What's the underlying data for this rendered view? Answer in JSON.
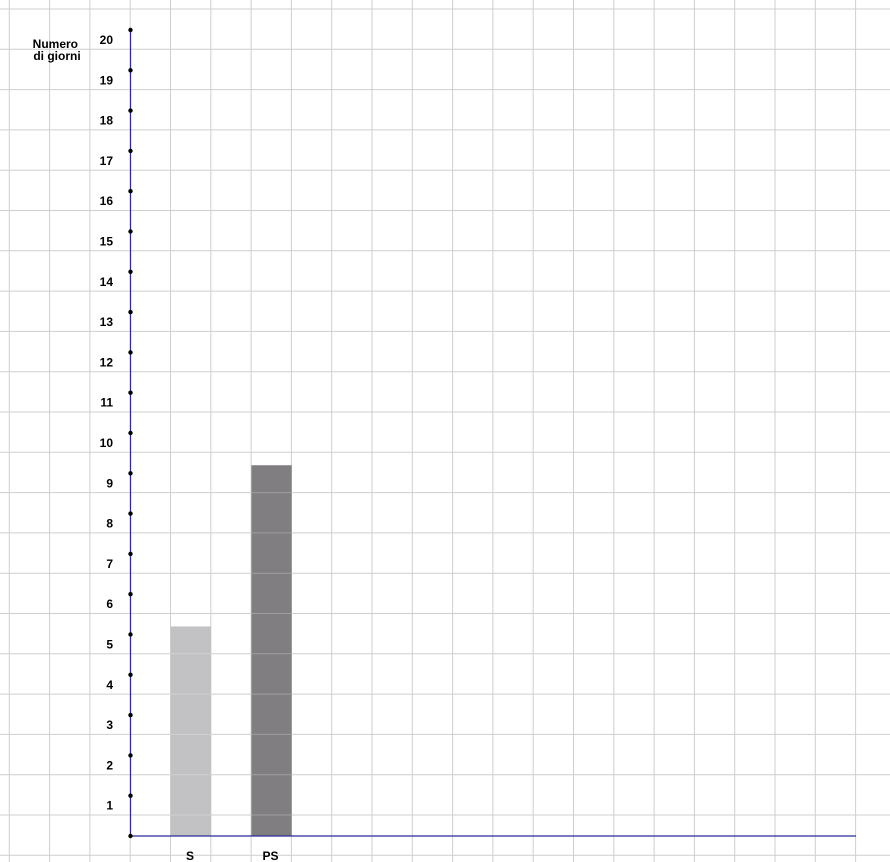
{
  "chart_data": {
    "type": "bar",
    "title": "",
    "xlabel": "",
    "ylabel_lines": [
      "Numero",
      "di giorni"
    ],
    "categories": [
      "S",
      "PS"
    ],
    "values": [
      5.2,
      9.2
    ],
    "ylim": [
      0,
      20
    ],
    "yticks": [
      "1",
      "2",
      "3",
      "4",
      "5",
      "6",
      "7",
      "8",
      "9",
      "10",
      "11",
      "12",
      "13",
      "14",
      "15",
      "16",
      "17",
      "18",
      "19",
      "20"
    ],
    "grid": true,
    "legend": "none",
    "colors": {
      "bars": [
        "#c2c1c4",
        "#807e80"
      ],
      "axis": "#2a2a9a",
      "grid": "#cfcfcf",
      "tick_dot": "#000000"
    }
  }
}
